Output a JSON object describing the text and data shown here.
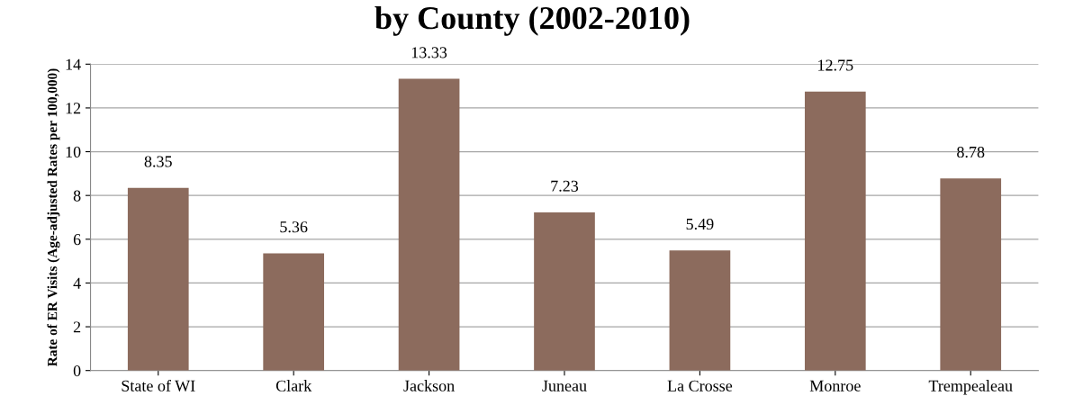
{
  "chart_data": {
    "type": "bar",
    "title": "by County (2002-2010)",
    "ylabel": "Rate of ER Visits (Age-adjusted Rates per 100,000)",
    "categories": [
      "State of WI",
      "Clark",
      "Jackson",
      "Juneau",
      "La Crosse",
      "Monroe",
      "Trempealeau"
    ],
    "values": [
      8.35,
      5.36,
      13.33,
      7.23,
      5.49,
      12.75,
      8.78
    ],
    "color": "#8c6b5d",
    "ylim": [
      0,
      14
    ],
    "yticks": [
      0,
      2,
      4,
      6,
      8,
      10,
      12,
      14
    ],
    "grid": "y",
    "data_labels": true
  }
}
